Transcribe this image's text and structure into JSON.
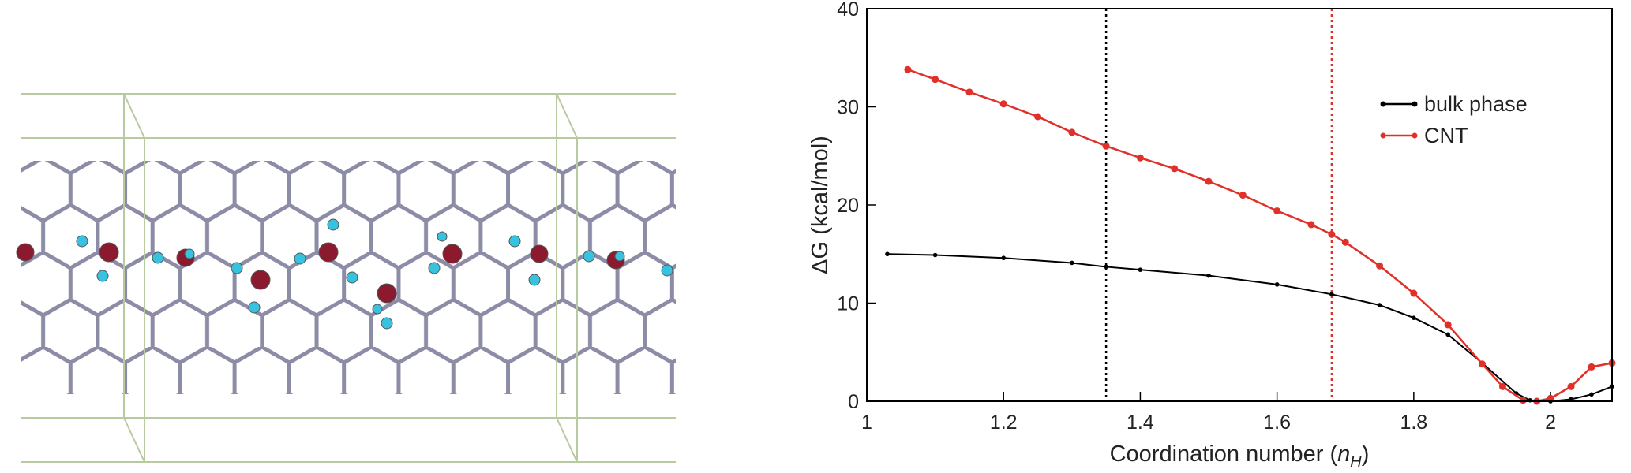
{
  "chart_data": {
    "type": "line",
    "ylabel": "ΔG (kcal/mol)",
    "xlabel": {
      "text": "Coordination number (",
      "var": "n",
      "sub": "H",
      "close": ")"
    },
    "xlim": [
      1,
      2.09
    ],
    "ylim": [
      0,
      40
    ],
    "xticks": [
      1,
      {
        "value": 1.2,
        "label": "1.2"
      },
      {
        "value": 1.4,
        "label": "1.4"
      },
      {
        "value": 1.6,
        "label": "1.6"
      },
      {
        "value": 1.8,
        "label": "1.8"
      },
      2
    ],
    "yticks": [
      0,
      10,
      20,
      30,
      40
    ],
    "legend": "upper right",
    "vlines": [
      {
        "x": 1.35,
        "color": "#000000"
      },
      {
        "x": 1.68,
        "color": "#e0302a"
      }
    ],
    "series": [
      {
        "name": "bulk phase",
        "color": "#000000",
        "x": [
          1.03,
          1.1,
          1.2,
          1.3,
          1.35,
          1.4,
          1.5,
          1.6,
          1.68,
          1.75,
          1.8,
          1.85,
          1.9,
          1.95,
          1.97,
          2.0,
          2.03,
          2.06,
          2.09
        ],
        "values": [
          15.0,
          14.9,
          14.6,
          14.1,
          13.7,
          13.4,
          12.8,
          11.9,
          10.9,
          9.8,
          8.5,
          6.8,
          3.9,
          0.8,
          0.1,
          0,
          0.2,
          0.7,
          1.5
        ]
      },
      {
        "name": "CNT",
        "color": "#e0302a",
        "x": [
          1.06,
          1.1,
          1.15,
          1.2,
          1.25,
          1.3,
          1.35,
          1.4,
          1.45,
          1.5,
          1.55,
          1.6,
          1.65,
          1.68,
          1.7,
          1.75,
          1.8,
          1.85,
          1.9,
          1.93,
          1.96,
          1.98,
          2.0,
          2.03,
          2.06,
          2.09
        ],
        "values": [
          33.8,
          32.8,
          31.5,
          30.3,
          29.0,
          27.4,
          26.0,
          24.8,
          23.7,
          22.4,
          21.0,
          19.4,
          18.0,
          17.0,
          16.2,
          13.8,
          11.0,
          7.8,
          3.8,
          1.5,
          0.1,
          0,
          0.3,
          1.5,
          3.5,
          3.9
        ]
      }
    ]
  }
}
